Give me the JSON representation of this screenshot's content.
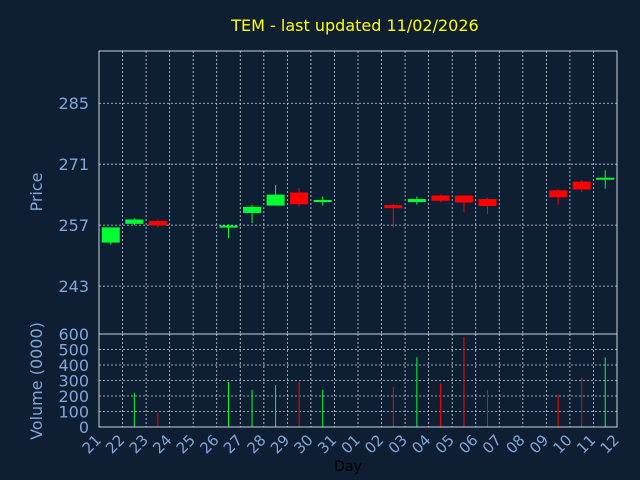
{
  "chart_data": {
    "type": "candlestick",
    "title": "TEM - last updated 11/02/2026",
    "xlabel": "Day",
    "ylabel_price": "Price",
    "ylabel_volume": "Volume (0000)",
    "x_ticks": [
      "21",
      "22",
      "23",
      "24",
      "25",
      "26",
      "27",
      "28",
      "29",
      "30",
      "31",
      "01",
      "02",
      "03",
      "04",
      "05",
      "06",
      "07",
      "08",
      "09",
      "10",
      "11",
      "12"
    ],
    "price_ticks": [
      243,
      257,
      271,
      285
    ],
    "price_ylim": [
      232,
      297
    ],
    "volume_ticks": [
      0,
      100,
      200,
      300,
      400,
      500,
      600
    ],
    "volume_ylim": [
      0,
      600
    ],
    "grid": true,
    "colors": {
      "up": "#00ff33",
      "down": "#ff0000",
      "flat": "#00ff33",
      "title": "#ffff00",
      "axis_text": "#7fa7d9",
      "grid": "#c8d2dc",
      "frame": "#c8d2dc"
    },
    "candles": [
      {
        "day": "21",
        "open": 253.0,
        "high": 256.5,
        "low": 252.5,
        "close": 256.5,
        "volume": 0
      },
      {
        "day": "22",
        "open": 257.3,
        "high": 258.6,
        "low": 257.0,
        "close": 258.3,
        "volume": 220
      },
      {
        "day": "23",
        "open": 258.0,
        "high": 258.3,
        "low": 256.5,
        "close": 256.9,
        "volume": 90
      },
      {
        "day": "26",
        "open": 256.7,
        "high": 257.2,
        "low": 254.0,
        "close": 256.9,
        "volume": 290
      },
      {
        "day": "27",
        "open": 259.8,
        "high": 261.7,
        "low": 257.5,
        "close": 261.2,
        "volume": 240
      },
      {
        "day": "28",
        "open": 261.5,
        "high": 266.2,
        "low": 261.5,
        "close": 264.0,
        "volume": 270
      },
      {
        "day": "29",
        "open": 264.5,
        "high": 265.5,
        "low": 261.3,
        "close": 261.8,
        "volume": 290
      },
      {
        "day": "30",
        "open": 262.3,
        "high": 263.6,
        "low": 261.5,
        "close": 262.8,
        "volume": 240
      },
      {
        "day": "02",
        "open": 261.6,
        "high": 261.9,
        "low": 256.5,
        "close": 260.9,
        "volume": 260
      },
      {
        "day": "03",
        "open": 262.3,
        "high": 263.6,
        "low": 261.7,
        "close": 263.0,
        "volume": 450
      },
      {
        "day": "04",
        "open": 263.8,
        "high": 264.0,
        "low": 262.3,
        "close": 262.6,
        "volume": 280
      },
      {
        "day": "05",
        "open": 263.8,
        "high": 263.9,
        "low": 259.9,
        "close": 262.2,
        "volume": 580
      },
      {
        "day": "06",
        "open": 263.0,
        "high": 263.3,
        "low": 259.5,
        "close": 261.4,
        "volume": 240
      },
      {
        "day": "09",
        "open": 265.0,
        "high": 265.3,
        "low": 261.7,
        "close": 263.4,
        "volume": 210
      },
      {
        "day": "10",
        "open": 267.0,
        "high": 267.4,
        "low": 264.6,
        "close": 265.2,
        "volume": 320
      },
      {
        "day": "11",
        "open": 267.7,
        "high": 269.6,
        "low": 265.4,
        "close": 267.9,
        "volume": 450
      }
    ]
  }
}
